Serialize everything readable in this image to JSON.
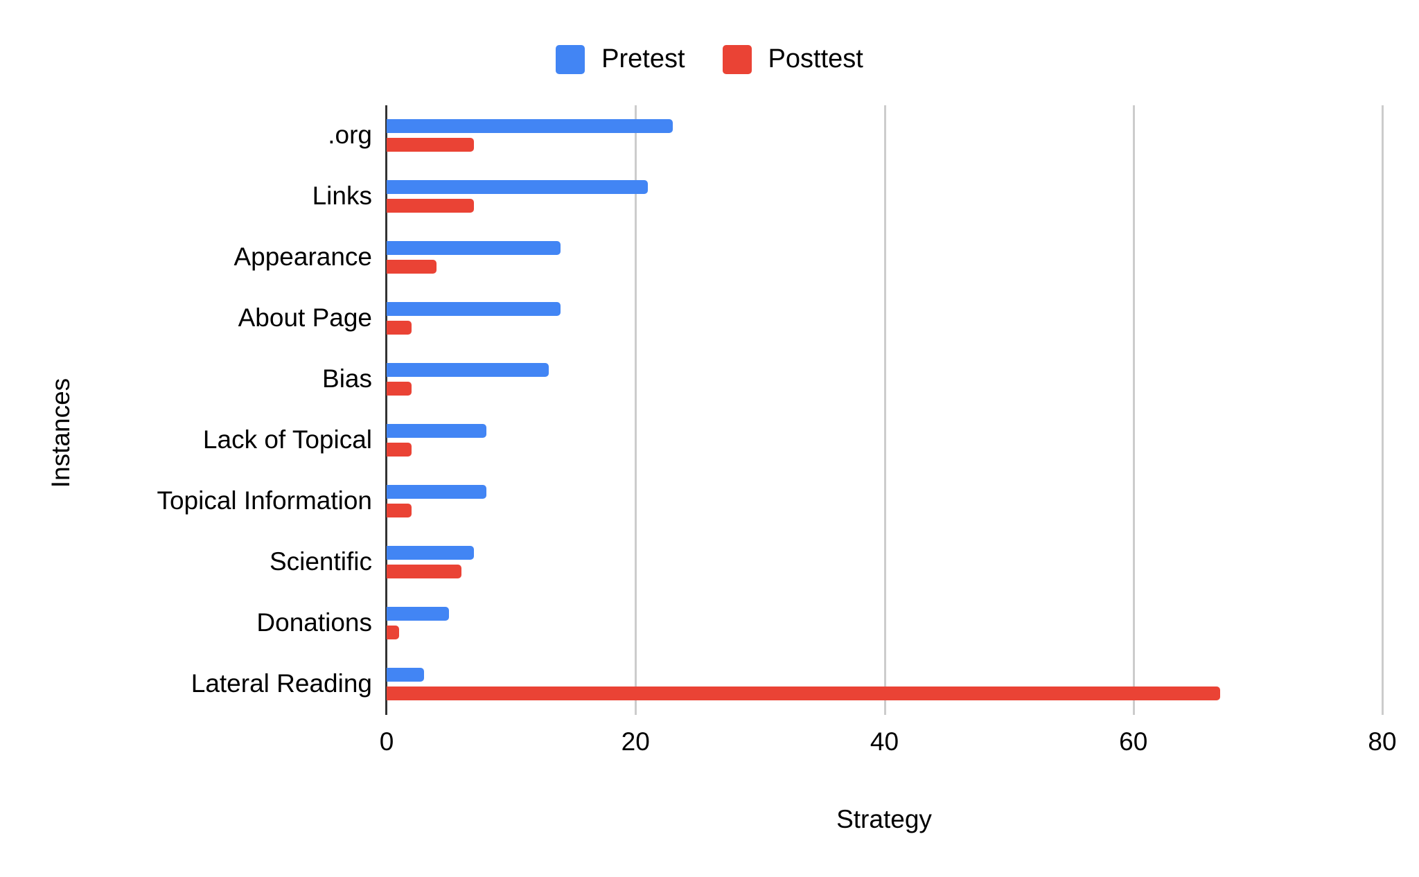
{
  "chart_data": {
    "type": "bar",
    "orientation": "horizontal",
    "title": "",
    "xlabel": "Strategy",
    "ylabel": "Instances",
    "xlim": [
      0,
      80
    ],
    "xticks": [
      0,
      20,
      40,
      60,
      80
    ],
    "grid": true,
    "legend_position": "top",
    "categories": [
      ".org",
      "Links",
      "Appearance",
      "About Page",
      "Bias",
      "Lack of Topical",
      "Topical Information",
      "Scientific",
      "Donations",
      "Lateral Reading"
    ],
    "series": [
      {
        "name": "Pretest",
        "color": "#4285f4",
        "values": [
          23,
          21,
          14,
          14,
          13,
          8,
          8,
          7,
          5,
          3
        ]
      },
      {
        "name": "Posttest",
        "color": "#ea4335",
        "values": [
          7,
          7,
          4,
          2,
          2,
          2,
          2,
          6,
          1,
          67
        ]
      }
    ]
  },
  "legend": {
    "items": [
      {
        "label": "Pretest",
        "color": "#4285f4"
      },
      {
        "label": "Posttest",
        "color": "#ea4335"
      }
    ]
  },
  "axes": {
    "x_ticks": [
      "0",
      "20",
      "40",
      "60",
      "80"
    ],
    "x_title": "Strategy",
    "y_title": "Instances"
  }
}
